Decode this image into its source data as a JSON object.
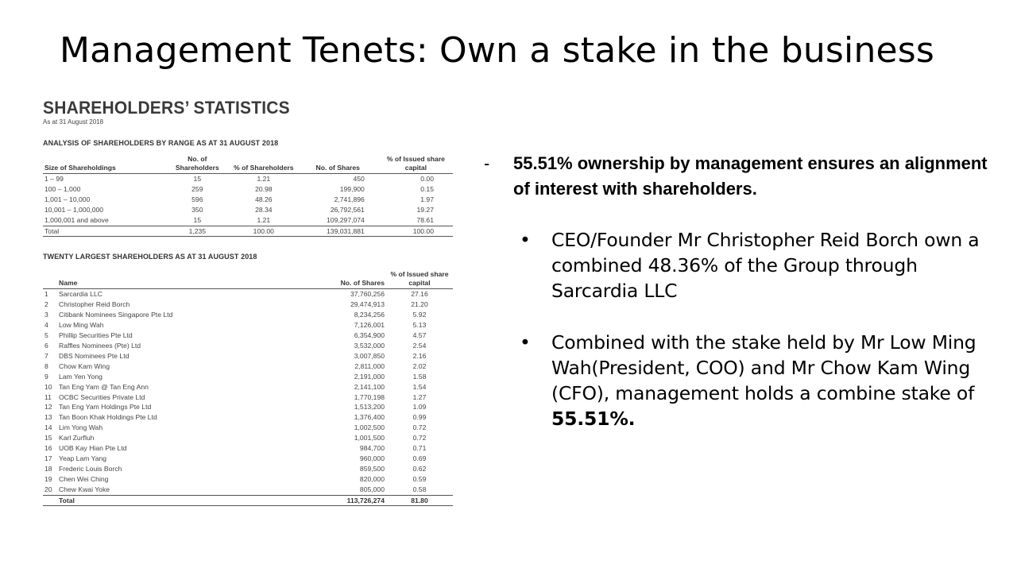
{
  "slide": {
    "title": "Management Tenets: Own a stake in the business"
  },
  "report": {
    "title": "SHAREHOLDERS’ STATISTICS",
    "as_at": "As at 31 August 2018",
    "range_section": {
      "heading": "ANALYSIS OF SHAREHOLDERS BY RANGE AS AT 31 AUGUST 2018",
      "columns": [
        "Size of Shareholdings",
        "No. of Shareholders",
        "% of Shareholders",
        "No. of Shares",
        "% of Issued share capital"
      ],
      "rows": [
        [
          "1 – 99",
          "15",
          "1.21",
          "450",
          "0.00"
        ],
        [
          "100 – 1,000",
          "259",
          "20.98",
          "199,900",
          "0.15"
        ],
        [
          "1,001 – 10,000",
          "596",
          "48.26",
          "2,741,896",
          "1.97"
        ],
        [
          "10,001 – 1,000,000",
          "350",
          "28.34",
          "26,792,561",
          "19.27"
        ],
        [
          "1,000,001 and above",
          "15",
          "1.21",
          "109,297,074",
          "78.61"
        ]
      ],
      "total": [
        "Total",
        "1,235",
        "100.00",
        "139,031,881",
        "100.00"
      ]
    },
    "largest_section": {
      "heading": "TWENTY LARGEST SHAREHOLDERS AS AT 31 AUGUST 2018",
      "columns": [
        "",
        "Name",
        "No. of Shares",
        "% of Issued share capital"
      ],
      "rows": [
        [
          "1",
          "Sarcardia LLC",
          "37,760,256",
          "27.16"
        ],
        [
          "2",
          "Christopher Reid Borch",
          "29,474,913",
          "21.20"
        ],
        [
          "3",
          "Citibank Nominees Singapore Pte Ltd",
          "8,234,256",
          "5.92"
        ],
        [
          "4",
          "Low Ming Wah",
          "7,126,001",
          "5.13"
        ],
        [
          "5",
          "Phillip Securities Pte Ltd",
          "6,354,900",
          "4.57"
        ],
        [
          "6",
          "Raffles Nominees (Pte) Ltd",
          "3,532,000",
          "2.54"
        ],
        [
          "7",
          "DBS Nominees Pte Ltd",
          "3,007,850",
          "2.16"
        ],
        [
          "8",
          "Chow Kam Wing",
          "2,811,000",
          "2.02"
        ],
        [
          "9",
          "Lam Yen Yong",
          "2,191,000",
          "1.58"
        ],
        [
          "10",
          "Tan Eng Yam @ Tan Eng Ann",
          "2,141,100",
          "1.54"
        ],
        [
          "11",
          "OCBC Securities Private Ltd",
          "1,770,198",
          "1.27"
        ],
        [
          "12",
          "Tan Eng Yam Holdings Pte Ltd",
          "1,513,200",
          "1.09"
        ],
        [
          "13",
          "Tan Boon Khak Holdings Pte Ltd",
          "1,376,400",
          "0.99"
        ],
        [
          "14",
          "Lim Yong Wah",
          "1,002,500",
          "0.72"
        ],
        [
          "15",
          "Karl Zurfluh",
          "1,001,500",
          "0.72"
        ],
        [
          "16",
          "UOB Kay Hian Pte Ltd",
          "984,700",
          "0.71"
        ],
        [
          "17",
          "Yeap Lam Yang",
          "960,000",
          "0.69"
        ],
        [
          "18",
          "Frederic Louis Borch",
          "859,500",
          "0.62"
        ],
        [
          "19",
          "Chen Wei Ching",
          "820,000",
          "0.59"
        ],
        [
          "20",
          "Chew Kwai Yoke",
          "805,000",
          "0.58"
        ]
      ],
      "total": [
        "",
        "Total",
        "113,726,274",
        "81.80"
      ]
    }
  },
  "bullets": {
    "dash": "-",
    "lead": "55.51% ownership by management ensures an alignment of interest with shareholders.",
    "items": [
      {
        "bullet": "•",
        "text": "CEO/Founder Mr Christopher Reid Borch own a combined 48.36% of the Group through Sarcardia LLC"
      },
      {
        "bullet": "•",
        "text": "Combined with the stake held by Mr Low Ming Wah(President, COO) and Mr Chow Kam Wing (CFO), management holds a combine stake of",
        "bold": "55.51%."
      }
    ]
  }
}
